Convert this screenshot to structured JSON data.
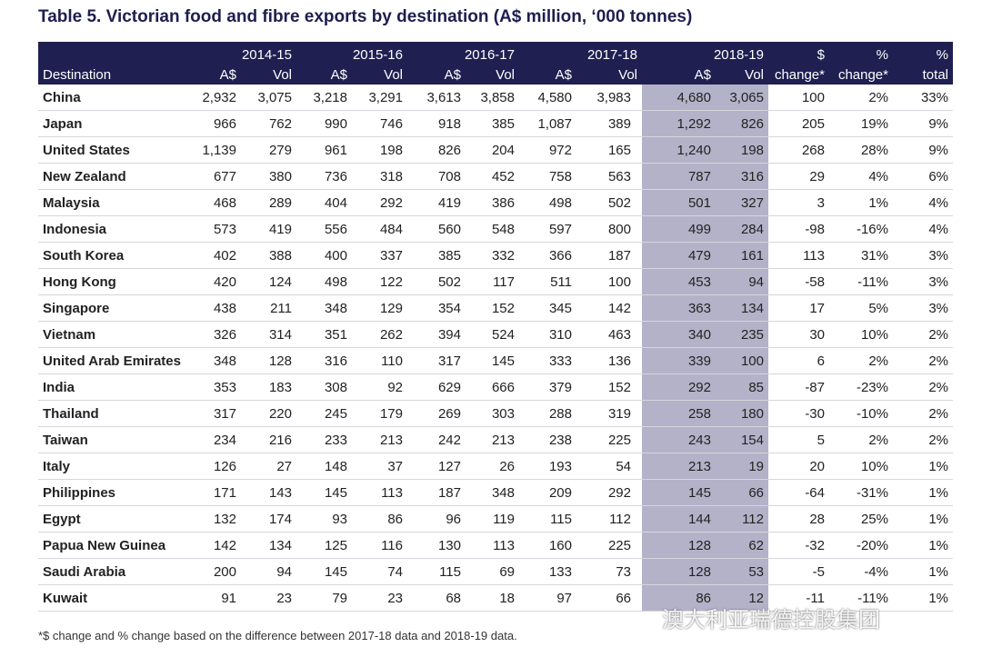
{
  "title": "Table 5. Victorian food and fibre exports by destination (A$ million, ‘000 tonnes)",
  "header": {
    "years": [
      "2014-15",
      "2015-16",
      "2016-17",
      "2017-18",
      "2018-19"
    ],
    "top": [
      "$",
      "%",
      "%"
    ],
    "labels": [
      "Destination",
      "A$",
      "Vol",
      "A$",
      "Vol",
      "A$",
      "Vol",
      "A$",
      "Vol",
      "A$",
      "Vol",
      "change*",
      "change*",
      "total"
    ]
  },
  "rows": [
    [
      "China",
      "2,932",
      "3,075",
      "3,218",
      "3,291",
      "3,613",
      "3,858",
      "4,580",
      "3,983",
      "4,680",
      "3,065",
      "100",
      "2%",
      "33%"
    ],
    [
      "Japan",
      "966",
      "762",
      "990",
      "746",
      "918",
      "385",
      "1,087",
      "389",
      "1,292",
      "826",
      "205",
      "19%",
      "9%"
    ],
    [
      "United States",
      "1,139",
      "279",
      "961",
      "198",
      "826",
      "204",
      "972",
      "165",
      "1,240",
      "198",
      "268",
      "28%",
      "9%"
    ],
    [
      "New Zealand",
      "677",
      "380",
      "736",
      "318",
      "708",
      "452",
      "758",
      "563",
      "787",
      "316",
      "29",
      "4%",
      "6%"
    ],
    [
      "Malaysia",
      "468",
      "289",
      "404",
      "292",
      "419",
      "386",
      "498",
      "502",
      "501",
      "327",
      "3",
      "1%",
      "4%"
    ],
    [
      "Indonesia",
      "573",
      "419",
      "556",
      "484",
      "560",
      "548",
      "597",
      "800",
      "499",
      "284",
      "-98",
      "-16%",
      "4%"
    ],
    [
      "South Korea",
      "402",
      "388",
      "400",
      "337",
      "385",
      "332",
      "366",
      "187",
      "479",
      "161",
      "113",
      "31%",
      "3%"
    ],
    [
      "Hong Kong",
      "420",
      "124",
      "498",
      "122",
      "502",
      "117",
      "511",
      "100",
      "453",
      "94",
      "-58",
      "-11%",
      "3%"
    ],
    [
      "Singapore",
      "438",
      "211",
      "348",
      "129",
      "354",
      "152",
      "345",
      "142",
      "363",
      "134",
      "17",
      "5%",
      "3%"
    ],
    [
      "Vietnam",
      "326",
      "314",
      "351",
      "262",
      "394",
      "524",
      "310",
      "463",
      "340",
      "235",
      "30",
      "10%",
      "2%"
    ],
    [
      "United Arab Emirates",
      "348",
      "128",
      "316",
      "110",
      "317",
      "145",
      "333",
      "136",
      "339",
      "100",
      "6",
      "2%",
      "2%"
    ],
    [
      "India",
      "353",
      "183",
      "308",
      "92",
      "629",
      "666",
      "379",
      "152",
      "292",
      "85",
      "-87",
      "-23%",
      "2%"
    ],
    [
      "Thailand",
      "317",
      "220",
      "245",
      "179",
      "269",
      "303",
      "288",
      "319",
      "258",
      "180",
      "-30",
      "-10%",
      "2%"
    ],
    [
      "Taiwan",
      "234",
      "216",
      "233",
      "213",
      "242",
      "213",
      "238",
      "225",
      "243",
      "154",
      "5",
      "2%",
      "2%"
    ],
    [
      "Italy",
      "126",
      "27",
      "148",
      "37",
      "127",
      "26",
      "193",
      "54",
      "213",
      "19",
      "20",
      "10%",
      "1%"
    ],
    [
      "Philippines",
      "171",
      "143",
      "145",
      "113",
      "187",
      "348",
      "209",
      "292",
      "145",
      "66",
      "-64",
      "-31%",
      "1%"
    ],
    [
      "Egypt",
      "132",
      "174",
      "93",
      "86",
      "96",
      "119",
      "115",
      "112",
      "144",
      "112",
      "28",
      "25%",
      "1%"
    ],
    [
      "Papua New Guinea",
      "142",
      "134",
      "125",
      "116",
      "130",
      "113",
      "160",
      "225",
      "128",
      "62",
      "-32",
      "-20%",
      "1%"
    ],
    [
      "Saudi Arabia",
      "200",
      "94",
      "145",
      "74",
      "115",
      "69",
      "133",
      "73",
      "128",
      "53",
      "-5",
      "-4%",
      "1%"
    ],
    [
      "Kuwait",
      "91",
      "23",
      "79",
      "23",
      "68",
      "18",
      "97",
      "66",
      "86",
      "12",
      "-11",
      "-11%",
      "1%"
    ]
  ],
  "footnote": "*$ change and % change based on the difference between 2017-18 data and 2018-19 data.",
  "watermark": "澳大利亚瑞德控股集团"
}
